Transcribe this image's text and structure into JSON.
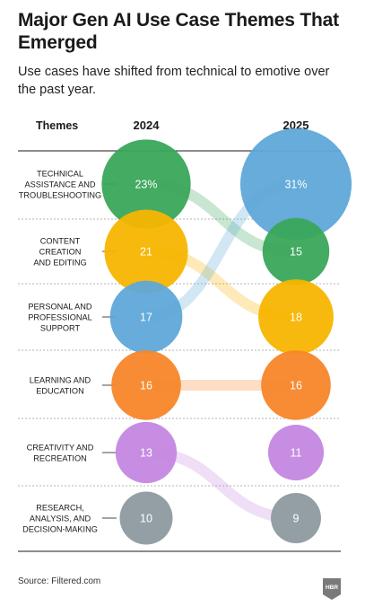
{
  "header": {
    "title": "Major Gen AI Use Case Themes That Emerged",
    "subtitle": "Use cases have shifted from technical to emotive over the past year."
  },
  "footer": {
    "source": "Source: Filtered.com",
    "logo_text": "HBR"
  },
  "chart_data": {
    "type": "slope",
    "column_headers": {
      "themes": "Themes",
      "left": "2024",
      "right": "2025"
    },
    "themes": [
      {
        "label": [
          "TECHNICAL",
          "ASSISTANCE AND",
          "TROUBLESHOOTING"
        ],
        "value_2024": 23,
        "label_2024": "23%",
        "rank_2025": 1,
        "color": "#3aa65a"
      },
      {
        "label": [
          "CONTENT",
          "CREATION",
          "AND EDITING"
        ],
        "value_2024": 21,
        "label_2024": "21",
        "rank_2025": 2,
        "color": "#f7b500"
      },
      {
        "label": [
          "PERSONAL AND",
          "PROFESSIONAL",
          "SUPPORT"
        ],
        "value_2024": 17,
        "label_2024": "17",
        "rank_2025": 0,
        "color": "#5fa8d8"
      },
      {
        "label": [
          "LEARNING AND",
          "EDUCATION"
        ],
        "value_2024": 16,
        "label_2024": "16",
        "rank_2025": 3,
        "color": "#f7862a"
      },
      {
        "label": [
          "CREATIVITY AND",
          "RECREATION"
        ],
        "value_2024": 13,
        "label_2024": "13",
        "rank_2025": 5,
        "color": "#c487e0"
      },
      {
        "label": [
          "RESEARCH,",
          "ANALYSIS, AND",
          "DECISION-MAKING"
        ],
        "value_2024": 10,
        "label_2024": "10",
        "rank_2025": 6,
        "color": "#8e9aa0"
      }
    ],
    "values_2025": [
      {
        "theme": "PERSONAL AND PROFESSIONAL SUPPORT",
        "value": 31,
        "label": "31%"
      },
      {
        "theme": "TECHNICAL ASSISTANCE AND TROUBLESHOOTING",
        "value": 15,
        "label": "15"
      },
      {
        "theme": "CONTENT CREATION AND EDITING",
        "value": 18,
        "label": "18"
      },
      {
        "theme": "LEARNING AND EDUCATION",
        "value": 16,
        "label": "16"
      },
      {
        "theme": "CREATIVITY AND RECREATION",
        "value": 11,
        "label": "11"
      },
      {
        "theme": "RESEARCH, ANALYSIS, AND DECISION-MAKING",
        "value": 9,
        "label": "9"
      }
    ]
  }
}
